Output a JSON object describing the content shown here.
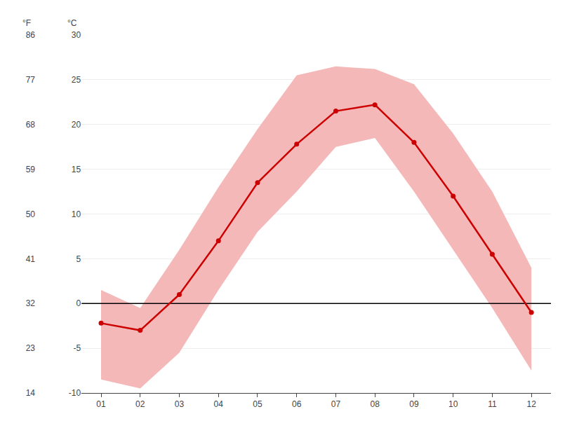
{
  "chart_data": {
    "type": "line",
    "x": [
      1,
      2,
      3,
      4,
      5,
      6,
      7,
      8,
      9,
      10,
      11,
      12
    ],
    "xlim": [
      0.5,
      12.5
    ],
    "xticks": [
      {
        "value": 1,
        "label": "01"
      },
      {
        "value": 2,
        "label": "02"
      },
      {
        "value": 3,
        "label": "03"
      },
      {
        "value": 4,
        "label": "04"
      },
      {
        "value": 5,
        "label": "05"
      },
      {
        "value": 6,
        "label": "06"
      },
      {
        "value": 7,
        "label": "07"
      },
      {
        "value": 8,
        "label": "08"
      },
      {
        "value": 9,
        "label": "09"
      },
      {
        "value": 10,
        "label": "10"
      },
      {
        "value": 11,
        "label": "11"
      },
      {
        "value": 12,
        "label": "12"
      }
    ],
    "series": [
      {
        "type": "band",
        "color": "#f5b8b8",
        "lower": [
          -8.5,
          -9.5,
          -5.5,
          1.5,
          8.0,
          12.5,
          17.5,
          18.5,
          12.5,
          6.0,
          -0.5,
          -7.5
        ],
        "upper": [
          1.5,
          -0.5,
          6.0,
          13.0,
          19.5,
          25.5,
          26.5,
          26.2,
          24.5,
          19.0,
          12.5,
          4.0
        ]
      },
      {
        "type": "line",
        "color": "#cc0000",
        "marker": "circle",
        "values": [
          -2.2,
          -3.0,
          1.0,
          7.0,
          13.5,
          17.8,
          21.5,
          22.2,
          18.0,
          12.0,
          5.5,
          -1.0
        ]
      }
    ],
    "reference_line": {
      "value": 0,
      "color": "#000000"
    },
    "ylabel": "°C",
    "ylim": [
      -10,
      30
    ],
    "yticks": [
      -10,
      -5,
      0,
      5,
      10,
      15,
      20,
      25,
      30
    ],
    "y2label": "°F",
    "y2lim": [
      14,
      86
    ],
    "y2ticks": [
      14,
      23,
      32,
      41,
      50,
      59,
      68,
      77,
      86
    ],
    "grid": true
  }
}
